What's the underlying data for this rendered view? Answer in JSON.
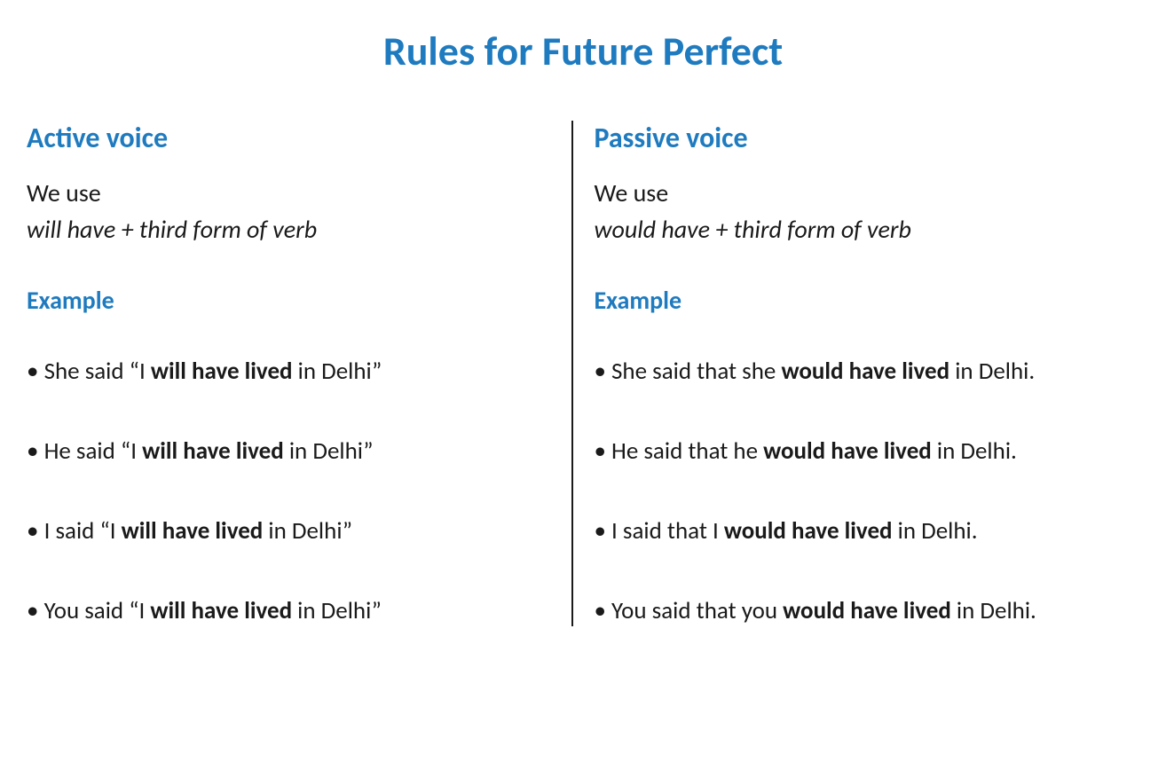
{
  "title": "Rules for Future Perfect",
  "colors": {
    "heading_blue": "#1f7bbf",
    "text_black": "#1a1a1a",
    "background": "#ffffff"
  },
  "typography": {
    "title_fontsize": 46,
    "section_heading_fontsize": 32,
    "body_fontsize": 28,
    "example_fontsize": 27,
    "font_family": "Calibri"
  },
  "left": {
    "heading": "Active voice",
    "usage_intro": "We use",
    "usage_rule": "will have + third form of verb",
    "example_heading": "Example",
    "examples": [
      {
        "pre": "She said “I ",
        "bold": "will have lived",
        "post": " in Delhi”"
      },
      {
        "pre": "He said “I ",
        "bold": "will have lived",
        "post": " in Delhi”"
      },
      {
        "pre": "I said “I ",
        "bold": "will have lived",
        "post": " in Delhi”"
      },
      {
        "pre": "You said “I ",
        "bold": "will have lived",
        "post": " in Delhi”"
      }
    ]
  },
  "right": {
    "heading": "Passive voice",
    "usage_intro": "We use",
    "usage_rule": "would have + third form of verb",
    "example_heading": "Example",
    "examples": [
      {
        "pre": "She said that she ",
        "bold": "would have lived",
        "post": " in Delhi."
      },
      {
        "pre": "He said that he ",
        "bold": "would have lived",
        "post": " in Delhi."
      },
      {
        "pre": "I said that I ",
        "bold": "would have lived",
        "post": " in Delhi."
      },
      {
        "pre": " You said that you ",
        "bold": "would have lived",
        "post": " in Delhi."
      }
    ]
  }
}
